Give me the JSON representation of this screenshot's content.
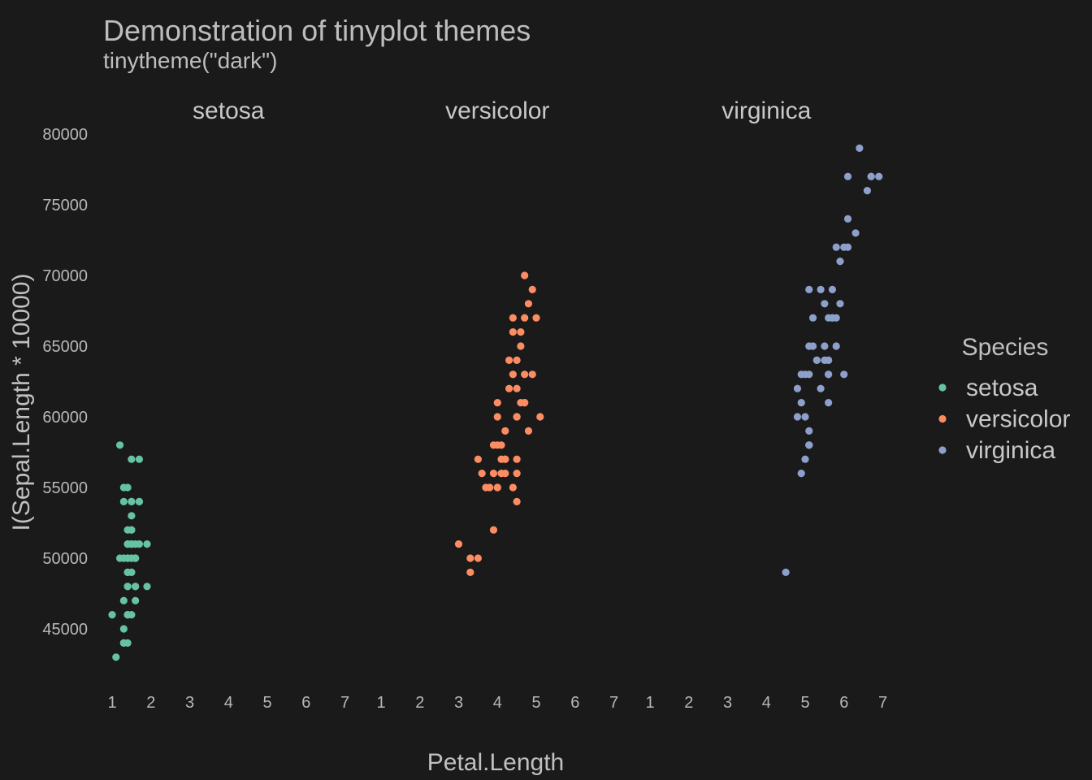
{
  "chart_data": {
    "type": "scatter",
    "title": "Demonstration of tinyplot themes",
    "subtitle": "tinytheme(\"dark\")",
    "xlabel": "Petal.Length",
    "ylabel": "I(Sepal.Length * 10000)",
    "xlim": [
      1,
      7
    ],
    "ylim": [
      43000,
      79000
    ],
    "x_ticks": [
      1,
      2,
      3,
      4,
      5,
      6,
      7
    ],
    "x_tick_labels": [
      "1",
      "2",
      "3",
      "4",
      "5",
      "6",
      "7"
    ],
    "y_ticks": [
      45000,
      50000,
      55000,
      60000,
      65000,
      70000,
      75000,
      80000
    ],
    "y_tick_labels": [
      "45000",
      "50000",
      "55000",
      "60000",
      "65000",
      "70000",
      "75000",
      "80000"
    ],
    "grid": false,
    "legend": {
      "title": "Species",
      "placement": "right"
    },
    "facets": [
      "setosa",
      "versicolor",
      "virginica"
    ],
    "series": [
      {
        "name": "setosa",
        "color": "#66c2a5",
        "facet": "setosa",
        "points": [
          [
            1.4,
            51000
          ],
          [
            1.4,
            49000
          ],
          [
            1.3,
            47000
          ],
          [
            1.5,
            46000
          ],
          [
            1.4,
            50000
          ],
          [
            1.7,
            54000
          ],
          [
            1.4,
            46000
          ],
          [
            1.5,
            50000
          ],
          [
            1.4,
            44000
          ],
          [
            1.5,
            49000
          ],
          [
            1.5,
            54000
          ],
          [
            1.6,
            48000
          ],
          [
            1.4,
            48000
          ],
          [
            1.1,
            43000
          ],
          [
            1.2,
            58000
          ],
          [
            1.5,
            57000
          ],
          [
            1.3,
            54000
          ],
          [
            1.4,
            51000
          ],
          [
            1.7,
            57000
          ],
          [
            1.5,
            51000
          ],
          [
            1.7,
            54000
          ],
          [
            1.5,
            51000
          ],
          [
            1.0,
            46000
          ],
          [
            1.7,
            51000
          ],
          [
            1.9,
            48000
          ],
          [
            1.6,
            50000
          ],
          [
            1.6,
            50000
          ],
          [
            1.5,
            52000
          ],
          [
            1.4,
            52000
          ],
          [
            1.6,
            47000
          ],
          [
            1.6,
            48000
          ],
          [
            1.5,
            54000
          ],
          [
            1.5,
            52000
          ],
          [
            1.4,
            55000
          ],
          [
            1.5,
            49000
          ],
          [
            1.2,
            50000
          ],
          [
            1.3,
            55000
          ],
          [
            1.4,
            49000
          ],
          [
            1.3,
            44000
          ],
          [
            1.5,
            51000
          ],
          [
            1.3,
            50000
          ],
          [
            1.3,
            45000
          ],
          [
            1.3,
            44000
          ],
          [
            1.6,
            50000
          ],
          [
            1.9,
            51000
          ],
          [
            1.4,
            48000
          ],
          [
            1.6,
            51000
          ],
          [
            1.4,
            46000
          ],
          [
            1.5,
            53000
          ],
          [
            1.4,
            50000
          ]
        ]
      },
      {
        "name": "versicolor",
        "color": "#fc8d62",
        "facet": "versicolor",
        "points": [
          [
            4.7,
            70000
          ],
          [
            4.5,
            64000
          ],
          [
            4.9,
            69000
          ],
          [
            4.0,
            55000
          ],
          [
            4.6,
            65000
          ],
          [
            4.5,
            57000
          ],
          [
            4.7,
            63000
          ],
          [
            3.3,
            49000
          ],
          [
            4.6,
            66000
          ],
          [
            3.9,
            52000
          ],
          [
            3.5,
            50000
          ],
          [
            4.2,
            59000
          ],
          [
            4.0,
            60000
          ],
          [
            4.7,
            61000
          ],
          [
            3.6,
            56000
          ],
          [
            4.4,
            67000
          ],
          [
            4.5,
            56000
          ],
          [
            4.1,
            58000
          ],
          [
            4.5,
            62000
          ],
          [
            3.9,
            56000
          ],
          [
            4.8,
            59000
          ],
          [
            4.0,
            61000
          ],
          [
            4.9,
            63000
          ],
          [
            4.7,
            61000
          ],
          [
            4.3,
            64000
          ],
          [
            4.4,
            66000
          ],
          [
            4.8,
            68000
          ],
          [
            5.0,
            67000
          ],
          [
            4.5,
            60000
          ],
          [
            3.5,
            57000
          ],
          [
            3.8,
            55000
          ],
          [
            3.7,
            55000
          ],
          [
            3.9,
            58000
          ],
          [
            5.1,
            60000
          ],
          [
            4.5,
            54000
          ],
          [
            4.5,
            60000
          ],
          [
            4.7,
            67000
          ],
          [
            4.4,
            63000
          ],
          [
            4.1,
            56000
          ],
          [
            4.0,
            55000
          ],
          [
            4.4,
            55000
          ],
          [
            4.6,
            61000
          ],
          [
            4.0,
            58000
          ],
          [
            3.3,
            50000
          ],
          [
            4.2,
            56000
          ],
          [
            4.2,
            57000
          ],
          [
            4.2,
            57000
          ],
          [
            4.3,
            62000
          ],
          [
            3.0,
            51000
          ],
          [
            4.1,
            57000
          ]
        ]
      },
      {
        "name": "virginica",
        "color": "#8da0cb",
        "facet": "virginica",
        "points": [
          [
            6.0,
            63000
          ],
          [
            5.1,
            58000
          ],
          [
            5.9,
            71000
          ],
          [
            5.6,
            63000
          ],
          [
            5.8,
            65000
          ],
          [
            6.6,
            76000
          ],
          [
            4.5,
            49000
          ],
          [
            6.3,
            73000
          ],
          [
            5.8,
            67000
          ],
          [
            6.1,
            72000
          ],
          [
            5.1,
            65000
          ],
          [
            5.3,
            64000
          ],
          [
            5.5,
            68000
          ],
          [
            5.0,
            57000
          ],
          [
            5.1,
            58000
          ],
          [
            5.3,
            64000
          ],
          [
            5.5,
            65000
          ],
          [
            6.7,
            77000
          ],
          [
            6.9,
            77000
          ],
          [
            5.0,
            60000
          ],
          [
            5.7,
            69000
          ],
          [
            4.9,
            56000
          ],
          [
            6.7,
            77000
          ],
          [
            4.9,
            63000
          ],
          [
            5.7,
            67000
          ],
          [
            6.0,
            72000
          ],
          [
            4.8,
            62000
          ],
          [
            4.9,
            61000
          ],
          [
            5.6,
            64000
          ],
          [
            5.8,
            72000
          ],
          [
            6.1,
            74000
          ],
          [
            6.4,
            79000
          ],
          [
            5.6,
            64000
          ],
          [
            5.1,
            63000
          ],
          [
            5.6,
            61000
          ],
          [
            6.1,
            77000
          ],
          [
            5.6,
            63000
          ],
          [
            5.5,
            64000
          ],
          [
            4.8,
            60000
          ],
          [
            5.4,
            69000
          ],
          [
            5.6,
            67000
          ],
          [
            5.1,
            69000
          ],
          [
            5.1,
            58000
          ],
          [
            5.9,
            68000
          ],
          [
            5.7,
            67000
          ],
          [
            5.2,
            67000
          ],
          [
            5.0,
            63000
          ],
          [
            5.2,
            65000
          ],
          [
            5.4,
            62000
          ],
          [
            5.1,
            59000
          ]
        ]
      }
    ]
  }
}
